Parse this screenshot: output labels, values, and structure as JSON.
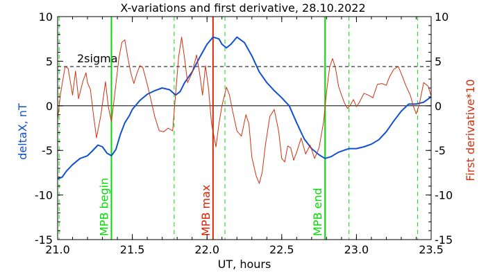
{
  "chart_data": {
    "type": "line",
    "title": "X-variations and first derivative, 28.10.2022",
    "xlabel": "UT, hours",
    "ylabel_left": "deltaX, nT",
    "ylabel_right": "First derivative*10",
    "xlim": [
      21.0,
      23.5
    ],
    "ylim": [
      -15,
      10
    ],
    "x_ticks": [
      "21.0",
      "21.5",
      "22.0",
      "22.5",
      "23.0",
      "23.5"
    ],
    "x_tick_values": [
      21.0,
      21.5,
      22.0,
      22.5,
      23.0,
      23.5
    ],
    "y_ticks": [
      "10",
      "5",
      "0",
      "-5",
      "-10",
      "-15"
    ],
    "y_tick_values": [
      10,
      5,
      0,
      -5,
      -10,
      -15
    ],
    "reference_lines": [
      {
        "label": "2sigma",
        "y": 4.4,
        "style": "dashed",
        "color": "#000000"
      },
      {
        "label": "",
        "y": 0,
        "style": "solid",
        "color": "#000000"
      }
    ],
    "markers": [
      {
        "label": "MPB begin",
        "x": 21.36,
        "style": "solid",
        "color": "#00dd00"
      },
      {
        "label": "",
        "x": 21.78,
        "style": "dashed",
        "color": "#00dd00"
      },
      {
        "label": "MPB max",
        "x": 22.04,
        "style": "solid",
        "color": "#dd2200"
      },
      {
        "label": "",
        "x": 22.12,
        "style": "dashed",
        "color": "#00dd00"
      },
      {
        "label": "MPB end",
        "x": 22.79,
        "style": "solid",
        "color": "#00dd00"
      },
      {
        "label": "",
        "x": 22.95,
        "style": "dashed",
        "color": "#00dd00"
      },
      {
        "label": "",
        "x": 23.41,
        "style": "dashed",
        "color": "#00dd00"
      },
      {
        "label": "",
        "x": 21.01,
        "style": "dashed",
        "color": "#00dd00"
      }
    ],
    "series": [
      {
        "color": "#1050d0",
        "axis": "left",
        "points": [
          [
            21.0,
            -8.2
          ],
          [
            21.03,
            -8.0
          ],
          [
            21.06,
            -7.3
          ],
          [
            21.1,
            -6.6
          ],
          [
            21.15,
            -5.9
          ],
          [
            21.2,
            -5.6
          ],
          [
            21.23,
            -5.1
          ],
          [
            21.27,
            -4.4
          ],
          [
            21.3,
            -4.6
          ],
          [
            21.33,
            -5.3
          ],
          [
            21.36,
            -5.6
          ],
          [
            21.39,
            -4.9
          ],
          [
            21.42,
            -3.2
          ],
          [
            21.45,
            -1.9
          ],
          [
            21.48,
            -1.1
          ],
          [
            21.5,
            -0.4
          ],
          [
            21.55,
            0.6
          ],
          [
            21.6,
            1.3
          ],
          [
            21.65,
            1.7
          ],
          [
            21.7,
            2.0
          ],
          [
            21.75,
            1.8
          ],
          [
            21.79,
            1.2
          ],
          [
            21.82,
            1.6
          ],
          [
            21.85,
            2.6
          ],
          [
            21.9,
            3.8
          ],
          [
            21.95,
            5.4
          ],
          [
            22.0,
            6.9
          ],
          [
            22.04,
            7.7
          ],
          [
            22.08,
            7.5
          ],
          [
            22.1,
            6.9
          ],
          [
            22.13,
            6.5
          ],
          [
            22.16,
            6.9
          ],
          [
            22.2,
            7.7
          ],
          [
            22.25,
            7.1
          ],
          [
            22.3,
            5.6
          ],
          [
            22.35,
            3.8
          ],
          [
            22.4,
            2.6
          ],
          [
            22.45,
            1.7
          ],
          [
            22.5,
            0.9
          ],
          [
            22.55,
            0.0
          ],
          [
            22.6,
            -1.9
          ],
          [
            22.65,
            -3.7
          ],
          [
            22.7,
            -4.8
          ],
          [
            22.75,
            -5.5
          ],
          [
            22.79,
            -5.9
          ],
          [
            22.83,
            -5.7
          ],
          [
            22.88,
            -5.2
          ],
          [
            22.95,
            -4.8
          ],
          [
            23.0,
            -4.8
          ],
          [
            23.05,
            -4.6
          ],
          [
            23.1,
            -4.3
          ],
          [
            23.15,
            -3.8
          ],
          [
            23.2,
            -2.9
          ],
          [
            23.25,
            -1.7
          ],
          [
            23.3,
            -0.6
          ],
          [
            23.35,
            0.2
          ],
          [
            23.4,
            0.2
          ],
          [
            23.45,
            0.4
          ],
          [
            23.5,
            1.0
          ]
        ]
      },
      {
        "color": "#d03010",
        "axis": "right",
        "points": [
          [
            21.0,
            -1.5
          ],
          [
            21.02,
            1.4
          ],
          [
            21.05,
            4.4
          ],
          [
            21.07,
            4.2
          ],
          [
            21.1,
            1.2
          ],
          [
            21.12,
            3.9
          ],
          [
            21.14,
            0.8
          ],
          [
            21.17,
            2.8
          ],
          [
            21.19,
            3.7
          ],
          [
            21.2,
            2.6
          ],
          [
            21.22,
            1.8
          ],
          [
            21.24,
            -1.0
          ],
          [
            21.26,
            -3.6
          ],
          [
            21.29,
            -1.0
          ],
          [
            21.32,
            2.7
          ],
          [
            21.34,
            -0.2
          ],
          [
            21.36,
            -1.8
          ],
          [
            21.38,
            1.0
          ],
          [
            21.41,
            5.3
          ],
          [
            21.43,
            7.1
          ],
          [
            21.45,
            7.4
          ],
          [
            21.47,
            5.4
          ],
          [
            21.49,
            3.7
          ],
          [
            21.51,
            2.5
          ],
          [
            21.53,
            3.6
          ],
          [
            21.55,
            4.5
          ],
          [
            21.57,
            4.3
          ],
          [
            21.6,
            2.4
          ],
          [
            21.62,
            1.0
          ],
          [
            21.65,
            -1.2
          ],
          [
            21.68,
            -2.8
          ],
          [
            21.71,
            -2.9
          ],
          [
            21.74,
            -2.5
          ],
          [
            21.77,
            -2.8
          ],
          [
            21.79,
            1.4
          ],
          [
            21.81,
            5.5
          ],
          [
            21.83,
            7.7
          ],
          [
            21.85,
            5.3
          ],
          [
            21.87,
            2.6
          ],
          [
            21.9,
            3.7
          ],
          [
            21.93,
            5.7
          ],
          [
            21.95,
            3.7
          ],
          [
            21.97,
            1.2
          ],
          [
            21.99,
            4.5
          ],
          [
            22.01,
            1.9
          ],
          [
            22.03,
            -2.0
          ],
          [
            22.06,
            -4.6
          ],
          [
            22.08,
            -2.0
          ],
          [
            22.1,
            0.0
          ],
          [
            22.13,
            2.1
          ],
          [
            22.15,
            1.2
          ],
          [
            22.17,
            -0.5
          ],
          [
            22.2,
            -2.8
          ],
          [
            22.23,
            -3.4
          ],
          [
            22.26,
            -1.0
          ],
          [
            22.28,
            -2.0
          ],
          [
            22.3,
            -5.8
          ],
          [
            22.33,
            -7.9
          ],
          [
            22.35,
            -8.7
          ],
          [
            22.37,
            -7.4
          ],
          [
            22.39,
            -4.5
          ],
          [
            22.42,
            -1.2
          ],
          [
            22.45,
            -0.4
          ],
          [
            22.48,
            -2.9
          ],
          [
            22.5,
            -5.9
          ],
          [
            22.52,
            -6.3
          ],
          [
            22.54,
            -4.5
          ],
          [
            22.56,
            -4.7
          ],
          [
            22.58,
            -6.1
          ],
          [
            22.6,
            -5.2
          ],
          [
            22.63,
            -3.6
          ],
          [
            22.66,
            -5.4
          ],
          [
            22.69,
            -4.4
          ],
          [
            22.72,
            -5.9
          ],
          [
            22.75,
            -4.7
          ],
          [
            22.78,
            -1.8
          ],
          [
            22.8,
            1.6
          ],
          [
            22.82,
            4.3
          ],
          [
            22.84,
            5.3
          ],
          [
            22.86,
            4.2
          ],
          [
            22.88,
            2.2
          ],
          [
            22.9,
            1.2
          ],
          [
            22.92,
            0.3
          ],
          [
            22.94,
            -0.3
          ],
          [
            22.96,
            0.1
          ],
          [
            22.98,
            0.7
          ],
          [
            23.0,
            -0.1
          ],
          [
            23.02,
            0.4
          ],
          [
            23.05,
            1.4
          ],
          [
            23.08,
            1.2
          ],
          [
            23.11,
            0.9
          ],
          [
            23.14,
            2.4
          ],
          [
            23.17,
            2.5
          ],
          [
            23.2,
            2.3
          ],
          [
            23.22,
            3.2
          ],
          [
            23.25,
            4.1
          ],
          [
            23.28,
            4.4
          ],
          [
            23.3,
            3.6
          ],
          [
            23.33,
            2.3
          ],
          [
            23.36,
            1.2
          ],
          [
            23.38,
            0.0
          ],
          [
            23.4,
            -0.9
          ],
          [
            23.42,
            0.1
          ],
          [
            23.45,
            2.6
          ],
          [
            23.48,
            2.2
          ],
          [
            23.5,
            1.1
          ]
        ]
      }
    ]
  }
}
